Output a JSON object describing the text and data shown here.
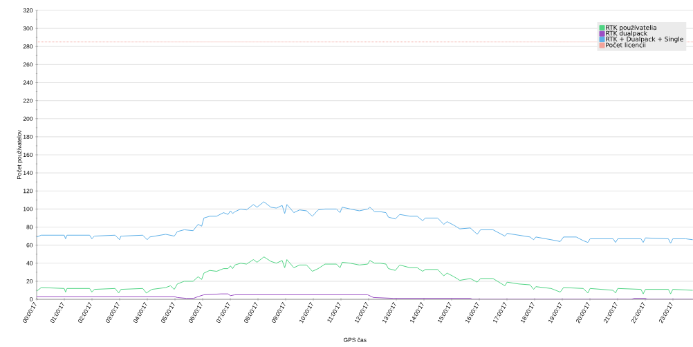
{
  "chart_data": {
    "type": "line",
    "xlabel": "GPS čas",
    "ylabel": "Počet používatelov",
    "xlim": [
      0.0047,
      23.73
    ],
    "ylim": [
      0,
      320
    ],
    "xticks": [
      {
        "value": 0.0047,
        "label": "00:00:17"
      },
      {
        "value": 1.0047,
        "label": "01:00:17"
      },
      {
        "value": 2.0047,
        "label": "02:00:17"
      },
      {
        "value": 3.0047,
        "label": "03:00:17"
      },
      {
        "value": 4.0047,
        "label": "04:00:17"
      },
      {
        "value": 5.0047,
        "label": "05:00:17"
      },
      {
        "value": 6.0047,
        "label": "06:00:17"
      },
      {
        "value": 7.0047,
        "label": "07:00:17"
      },
      {
        "value": 8.0047,
        "label": "08:00:17"
      },
      {
        "value": 9.0047,
        "label": "09:00:17"
      },
      {
        "value": 10.0047,
        "label": "10:00:17"
      },
      {
        "value": 11.0047,
        "label": "11:00:17"
      },
      {
        "value": 12.0047,
        "label": "12:00:17"
      },
      {
        "value": 13.0047,
        "label": "13:00:17"
      },
      {
        "value": 14.0047,
        "label": "14:00:17"
      },
      {
        "value": 15.0047,
        "label": "15:00:17"
      },
      {
        "value": 16.0047,
        "label": "16:00:17"
      },
      {
        "value": 17.0047,
        "label": "17:00:17"
      },
      {
        "value": 18.0047,
        "label": "18:00:17"
      },
      {
        "value": 19.0047,
        "label": "19:00:17"
      },
      {
        "value": 20.0047,
        "label": "20:00:17"
      },
      {
        "value": 21.0047,
        "label": "21:00:17"
      },
      {
        "value": 22.0047,
        "label": "22:00:17"
      },
      {
        "value": 23.0047,
        "label": "23:00:17"
      }
    ],
    "yticks": [
      0,
      20,
      40,
      60,
      80,
      100,
      120,
      140,
      160,
      180,
      200,
      220,
      240,
      260,
      280,
      300,
      320
    ],
    "grid": "y",
    "legend": "top right",
    "series": [
      {
        "name": "RTK používatelia",
        "color": "#4fd483",
        "x": [
          0.0047,
          0.17,
          1.0,
          1.05,
          1.1,
          1.92,
          2.0,
          2.09,
          2.84,
          2.97,
          3.05,
          3.84,
          3.97,
          4.17,
          4.67,
          4.84,
          4.98,
          5.09,
          5.34,
          5.66,
          5.84,
          5.97,
          6.05,
          6.26,
          6.51,
          6.76,
          6.92,
          7.01,
          7.09,
          7.17,
          7.38,
          7.59,
          7.84,
          7.97,
          8.22,
          8.47,
          8.67,
          8.88,
          8.97,
          9.05,
          9.3,
          9.51,
          9.76,
          9.97,
          10.18,
          10.43,
          10.84,
          10.97,
          11.05,
          11.34,
          11.67,
          11.97,
          12.05,
          12.22,
          12.43,
          12.63,
          12.72,
          12.97,
          13.13,
          13.5,
          13.76,
          13.96,
          14.05,
          14.5,
          14.72,
          14.84,
          15.09,
          15.3,
          15.68,
          15.93,
          16.05,
          16.5,
          16.93,
          17.01,
          17.43,
          17.84,
          17.97,
          18.05,
          18.6,
          18.93,
          19.05,
          19.76,
          19.93,
          20.01,
          20.84,
          20.93,
          21.01,
          21.85,
          21.93,
          22.01,
          22.84,
          22.92,
          23.0,
          23.72
        ],
        "values": [
          9,
          13,
          12,
          8,
          12,
          12,
          8,
          11,
          12,
          7,
          11,
          12,
          7,
          11,
          13,
          15,
          11,
          17,
          20,
          20,
          25,
          22,
          29,
          32,
          31,
          34,
          34,
          37,
          34,
          38,
          40,
          39,
          44,
          41,
          47,
          42,
          40,
          43,
          35,
          44,
          35,
          38,
          38,
          31,
          34,
          39,
          39,
          35,
          41,
          40,
          38,
          39,
          43,
          40,
          40,
          39,
          34,
          32,
          38,
          35,
          35,
          31,
          33,
          33,
          26,
          29,
          25,
          21,
          23,
          19,
          23,
          23,
          15,
          19,
          17,
          16,
          11,
          14,
          12,
          8,
          13,
          12,
          7,
          12,
          10,
          7,
          12,
          11,
          6,
          11,
          11,
          6,
          11,
          10
        ]
      },
      {
        "name": "RTK dualpack",
        "color": "#9b4fc4",
        "x": [
          0.0047,
          4.98,
          5.09,
          5.42,
          5.67,
          5.84,
          6.05,
          6.67,
          6.92,
          7.01,
          7.17,
          11.97,
          12.18,
          12.92,
          15.7,
          15.75,
          21.5,
          21.6,
          22.0,
          22.1,
          23.72
        ],
        "values": [
          3,
          3,
          2,
          1,
          1,
          3,
          5,
          6,
          6,
          4,
          5,
          5,
          2,
          1,
          1,
          0,
          0,
          1,
          1,
          0,
          0
        ]
      },
      {
        "name": "RTK + Dualpack + Single",
        "color": "#5eb0e8",
        "x": [
          0.0047,
          0.17,
          1.0,
          1.05,
          1.1,
          1.92,
          2.0,
          2.09,
          2.84,
          3.0,
          3.05,
          3.1,
          3.84,
          4.0,
          4.09,
          4.67,
          4.98,
          5.09,
          5.34,
          5.66,
          5.84,
          5.97,
          6.05,
          6.26,
          6.51,
          6.76,
          6.92,
          7.01,
          7.09,
          7.17,
          7.38,
          7.59,
          7.84,
          7.97,
          8.22,
          8.47,
          8.67,
          8.88,
          8.97,
          9.05,
          9.3,
          9.51,
          9.76,
          9.97,
          10.18,
          10.43,
          10.84,
          10.97,
          11.05,
          11.34,
          11.67,
          11.97,
          12.05,
          12.22,
          12.43,
          12.63,
          12.72,
          12.97,
          13.13,
          13.5,
          13.76,
          13.96,
          14.05,
          14.5,
          14.72,
          14.84,
          15.09,
          15.3,
          15.68,
          15.93,
          16.05,
          16.5,
          16.93,
          17.01,
          17.43,
          17.84,
          17.97,
          18.05,
          18.6,
          18.93,
          19.05,
          19.51,
          19.76,
          19.93,
          20.01,
          20.84,
          20.93,
          21.01,
          21.85,
          21.93,
          22.01,
          22.84,
          22.92,
          23.0,
          23.47,
          23.72
        ],
        "values": [
          69,
          71,
          71,
          67,
          71,
          71,
          67,
          70,
          71,
          66,
          70,
          70,
          71,
          66,
          69,
          72,
          70,
          75,
          77,
          76,
          83,
          81,
          90,
          92,
          92,
          96,
          94,
          98,
          95,
          97,
          100,
          99,
          105,
          102,
          108,
          102,
          101,
          104,
          95,
          105,
          96,
          99,
          98,
          92,
          99,
          100,
          100,
          96,
          102,
          100,
          98,
          100,
          102,
          97,
          97,
          96,
          91,
          89,
          94,
          92,
          92,
          87,
          90,
          90,
          83,
          86,
          82,
          78,
          79,
          72,
          77,
          77,
          70,
          73,
          71,
          69,
          66,
          69,
          66,
          64,
          69,
          69,
          65,
          63,
          67,
          67,
          63,
          67,
          67,
          63,
          68,
          67,
          62,
          67,
          67,
          66
        ]
      },
      {
        "name": "Počet licencii",
        "color": "#f2a49c",
        "line_style": "dotted",
        "x": [
          0.0047,
          23.73
        ],
        "values": [
          285,
          285
        ]
      }
    ]
  }
}
